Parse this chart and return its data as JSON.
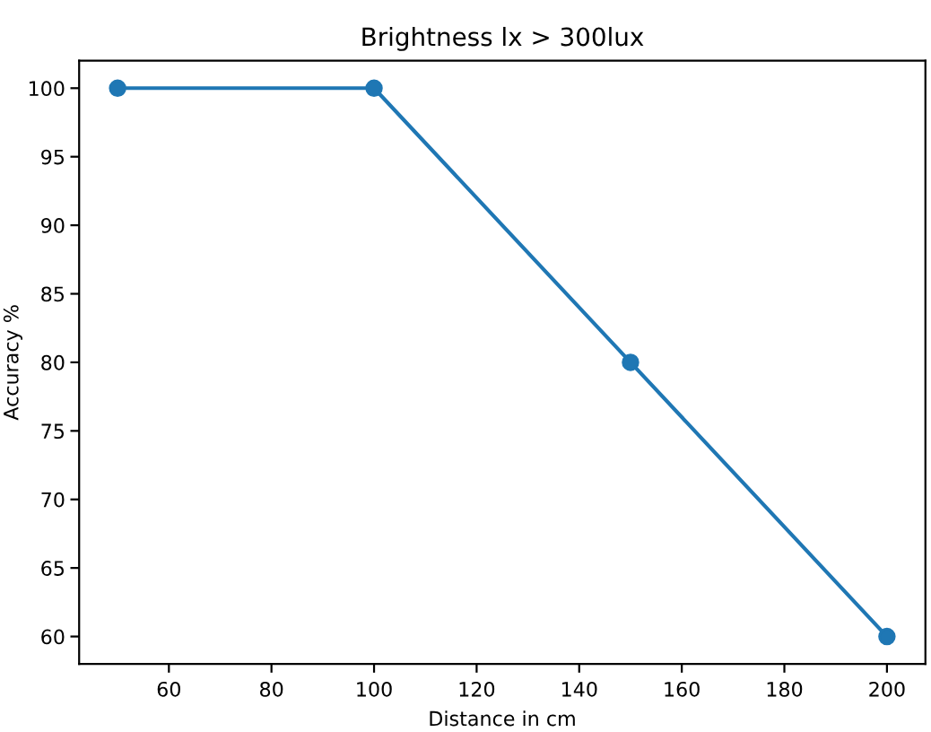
{
  "chart_data": {
    "type": "line",
    "title": "Brightness lx > 300lux",
    "xlabel": "Distance in cm",
    "ylabel": "Accuracy %",
    "x": [
      50,
      100,
      150,
      200
    ],
    "series": [
      {
        "color": "#1f77b4",
        "values": [
          100,
          100,
          80,
          60
        ]
      }
    ],
    "xlim": [
      42.5,
      207.5
    ],
    "xticks": [
      60,
      80,
      100,
      120,
      140,
      160,
      180,
      200
    ],
    "ylim": [
      58,
      102
    ],
    "yticks": [
      60,
      65,
      70,
      75,
      80,
      85,
      90,
      95,
      100
    ],
    "marker": "circle",
    "line_style": "solid",
    "grid": false,
    "legend": false
  }
}
